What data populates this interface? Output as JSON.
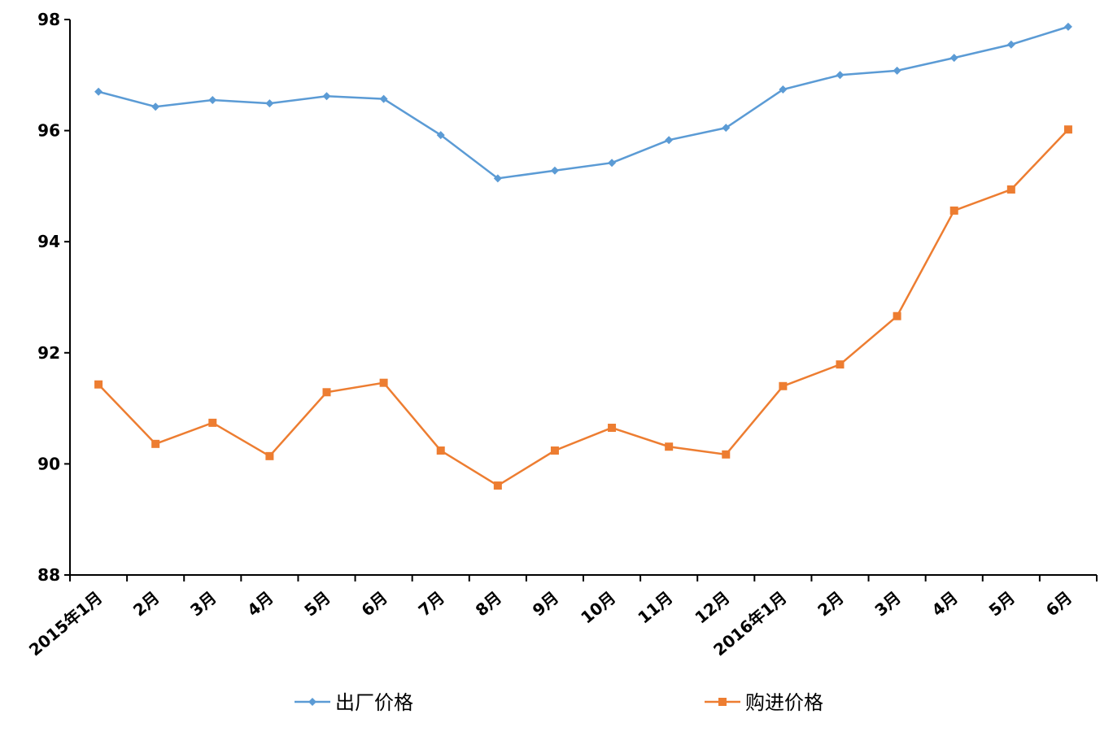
{
  "chart_data": {
    "type": "line",
    "categories": [
      "2015年1月",
      "2月",
      "3月",
      "4月",
      "5月",
      "6月",
      "7月",
      "8月",
      "9月",
      "10月",
      "11月",
      "12月",
      "2016年1月",
      "2月",
      "3月",
      "4月",
      "5月",
      "6月"
    ],
    "series": [
      {
        "name": "出厂价格",
        "color": "#5b9bd5",
        "marker": "diamond",
        "values": [
          96.7,
          96.43,
          96.55,
          96.49,
          96.62,
          96.57,
          95.92,
          95.14,
          95.28,
          95.42,
          95.83,
          96.05,
          96.74,
          97.0,
          97.08,
          97.31,
          97.55,
          97.87
        ]
      },
      {
        "name": "购进价格",
        "color": "#ed7d31",
        "marker": "square",
        "values": [
          91.43,
          90.36,
          90.74,
          90.14,
          91.29,
          91.46,
          90.24,
          89.61,
          90.24,
          90.65,
          90.31,
          90.17,
          91.4,
          91.79,
          92.66,
          94.56,
          94.94,
          96.02
        ]
      }
    ],
    "ylim": [
      88,
      98
    ],
    "yticks": [
      88,
      90,
      92,
      94,
      96,
      98
    ],
    "grid": false,
    "legend": "bottom"
  }
}
